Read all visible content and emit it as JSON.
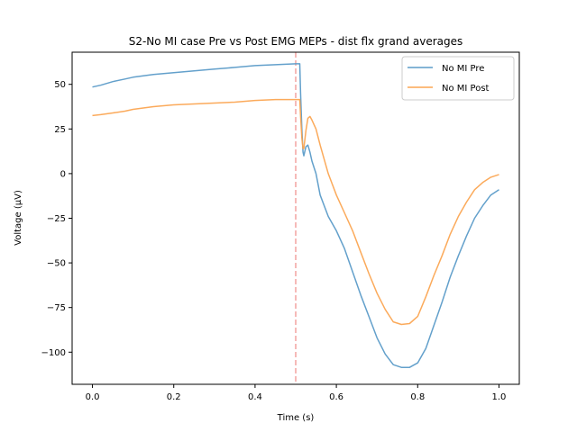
{
  "chart_data": {
    "type": "line",
    "title": "S2-No MI case Pre vs Post EMG MEPs - dist flx grand averages",
    "xlabel": "Time (s)",
    "ylabel": "Voltage (µV)",
    "xlim": [
      -0.05,
      1.05
    ],
    "ylim": [
      -118,
      68
    ],
    "xticks": [
      0.0,
      0.2,
      0.4,
      0.6,
      0.8,
      1.0
    ],
    "xtick_labels": [
      "0.0",
      "0.2",
      "0.4",
      "0.6",
      "0.8",
      "1.0"
    ],
    "yticks": [
      50,
      25,
      0,
      -25,
      -50,
      -75,
      -100
    ],
    "ytick_labels": [
      "50",
      "25",
      "0",
      "−25",
      "−50",
      "−75",
      "−100"
    ],
    "grid": false,
    "legend_position": "top-right",
    "vline": {
      "x": 0.5,
      "color": "#f4a3a0",
      "style": "dashed"
    },
    "series": [
      {
        "name": "No MI Pre",
        "color": "#5b9bc8",
        "x": [
          0.0,
          0.02,
          0.05,
          0.08,
          0.1,
          0.15,
          0.2,
          0.25,
          0.3,
          0.35,
          0.4,
          0.45,
          0.5,
          0.51,
          0.512,
          0.515,
          0.518,
          0.52,
          0.525,
          0.53,
          0.535,
          0.54,
          0.55,
          0.56,
          0.58,
          0.6,
          0.62,
          0.64,
          0.66,
          0.68,
          0.7,
          0.72,
          0.74,
          0.76,
          0.78,
          0.8,
          0.82,
          0.84,
          0.86,
          0.88,
          0.9,
          0.92,
          0.94,
          0.96,
          0.98,
          1.0
        ],
        "values": [
          48.5,
          49.5,
          51.5,
          53,
          54,
          55.5,
          56.5,
          57.5,
          58.5,
          59.5,
          60.5,
          61,
          61.5,
          61.5,
          45,
          25,
          12,
          10,
          15,
          16,
          12,
          7,
          0,
          -12,
          -24,
          -32,
          -42,
          -55,
          -68,
          -80,
          -92,
          -101,
          -107,
          -108.5,
          -108.5,
          -106,
          -98,
          -85,
          -72,
          -58,
          -46,
          -35,
          -25,
          -18,
          -12,
          -9
        ]
      },
      {
        "name": "No MI Post",
        "color": "#fba552",
        "x": [
          0.0,
          0.02,
          0.05,
          0.08,
          0.1,
          0.15,
          0.2,
          0.25,
          0.3,
          0.35,
          0.4,
          0.45,
          0.5,
          0.51,
          0.512,
          0.515,
          0.518,
          0.52,
          0.525,
          0.53,
          0.535,
          0.54,
          0.55,
          0.56,
          0.58,
          0.6,
          0.62,
          0.64,
          0.66,
          0.68,
          0.7,
          0.72,
          0.74,
          0.76,
          0.78,
          0.8,
          0.82,
          0.84,
          0.86,
          0.88,
          0.9,
          0.92,
          0.94,
          0.96,
          0.98,
          1.0
        ],
        "values": [
          32.5,
          33,
          34,
          35,
          36,
          37.5,
          38.5,
          39,
          39.5,
          40,
          41,
          41.5,
          41.5,
          41.5,
          32,
          20,
          14,
          14,
          24,
          31,
          32,
          30,
          25,
          16,
          0,
          -12,
          -22,
          -32,
          -44,
          -56,
          -67,
          -76,
          -83,
          -84.5,
          -84,
          -80,
          -69,
          -57,
          -46,
          -34,
          -24,
          -16,
          -9,
          -5,
          -2,
          -0.5
        ]
      }
    ]
  }
}
